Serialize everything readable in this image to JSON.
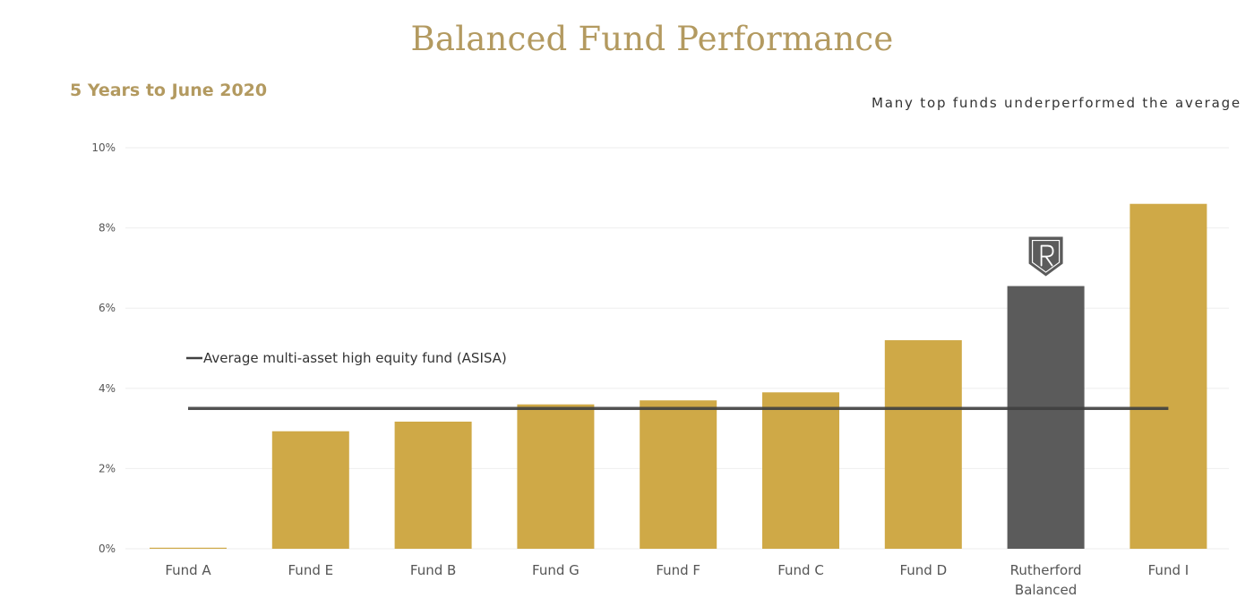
{
  "header": {
    "title": "Balanced Fund Performance",
    "subtitle": "5 Years to June 2020",
    "annotation": "Many top funds underperformed the average"
  },
  "colors": {
    "title": "#b39a60",
    "subtitle": "#b39a60",
    "bar": "#cfa947",
    "highlight_bar": "#5b5b5b",
    "average_line": "#404040",
    "grid": "#eeeeee",
    "shield": "#5b5b5b"
  },
  "chart_data": {
    "type": "bar",
    "title": "Balanced Fund Performance",
    "subtitle": "5 Years to June 2020",
    "xlabel": "",
    "ylabel": "",
    "ylim": [
      0,
      10
    ],
    "yticks": [
      0,
      2,
      4,
      6,
      8,
      10
    ],
    "ytick_labels": [
      "0%",
      "2%",
      "4%",
      "6%",
      "8%",
      "10%"
    ],
    "grid": true,
    "categories": [
      [
        "Fund A"
      ],
      [
        "Fund E"
      ],
      [
        "Fund B"
      ],
      [
        "Fund G"
      ],
      [
        "Fund F"
      ],
      [
        "Fund C"
      ],
      [
        "Fund D"
      ],
      [
        "Rutherford",
        "Balanced"
      ],
      [
        "Fund I"
      ]
    ],
    "values": [
      0.02,
      2.93,
      3.17,
      3.6,
      3.7,
      3.9,
      5.2,
      6.55,
      8.6
    ],
    "highlight_index": 7,
    "highlight_marker": "rutherford-shield-logo",
    "reference_line": {
      "name": "Average multi-asset high equity fund (ASISA)",
      "value": 3.5
    },
    "legend_position": "upper-left"
  }
}
